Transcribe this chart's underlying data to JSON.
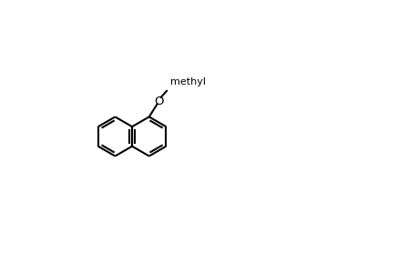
{
  "title": "",
  "background_color": "#ffffff",
  "line_color": "#000000",
  "bond_width": 1.5,
  "font_size": 10
}
